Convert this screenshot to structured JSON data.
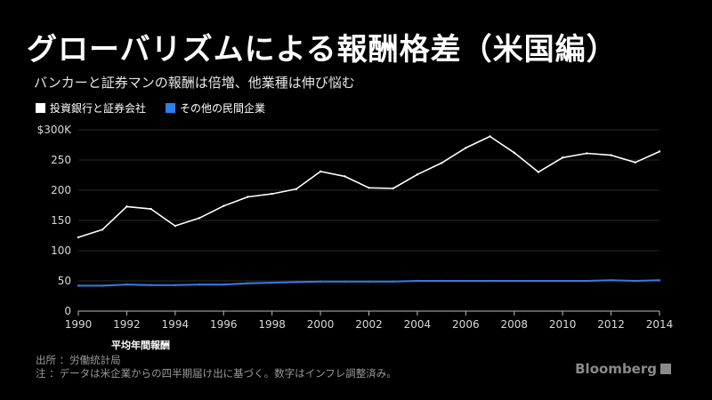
{
  "title": "グローバリズムによる報酬格差（米国編）",
  "subtitle": "バンカーと証券マンの報酬は倍増、他業種は伸び悩む",
  "y_axis_note": "平均年間報酬",
  "footnote_source": "出所 ：労働統計局",
  "footnote_note": "注 ：データは米企業からの四半期届け出に基づく。数字はインフレ調整済み。",
  "brand": "Bloomberg",
  "colors": {
    "background": "#000000",
    "series1": "#ffffff",
    "series2": "#2f7fe8",
    "grid": "#2a2a2a"
  },
  "chart_data": {
    "type": "line",
    "x": [
      1990,
      1991,
      1992,
      1993,
      1994,
      1995,
      1996,
      1997,
      1998,
      1999,
      2000,
      2001,
      2002,
      2003,
      2004,
      2005,
      2006,
      2007,
      2008,
      2009,
      2010,
      2011,
      2012,
      2013,
      2014
    ],
    "series": [
      {
        "name": "投資銀行と証券会社",
        "color": "#ffffff",
        "values": [
          122,
          135,
          173,
          169,
          141,
          154,
          174,
          189,
          194,
          202,
          231,
          223,
          204,
          203,
          226,
          245,
          270,
          289,
          262,
          230,
          254,
          261,
          258,
          246,
          264
        ]
      },
      {
        "name": "その他の民間企業",
        "color": "#2f7fe8",
        "values": [
          42,
          42,
          44,
          43,
          43,
          44,
          44,
          46,
          47,
          48,
          49,
          49,
          49,
          49,
          50,
          50,
          50,
          50,
          50,
          50,
          50,
          50,
          51,
          50,
          51
        ]
      }
    ],
    "yticks": [
      "$300K",
      "250",
      "200",
      "150",
      "100",
      "50",
      "0"
    ],
    "ytick_values": [
      300,
      250,
      200,
      150,
      100,
      50,
      0
    ],
    "xticks": [
      "1990",
      "1992",
      "1994",
      "1996",
      "1998",
      "2000",
      "2002",
      "2004",
      "2006",
      "2008",
      "2010",
      "2012",
      "2014"
    ],
    "xtick_values": [
      1990,
      1992,
      1994,
      1996,
      1998,
      2000,
      2002,
      2004,
      2006,
      2008,
      2010,
      2012,
      2014
    ],
    "xlim": [
      1990,
      2014
    ],
    "ylim": [
      0,
      300
    ],
    "grid": "horizontal",
    "legend_position": "top-left"
  }
}
